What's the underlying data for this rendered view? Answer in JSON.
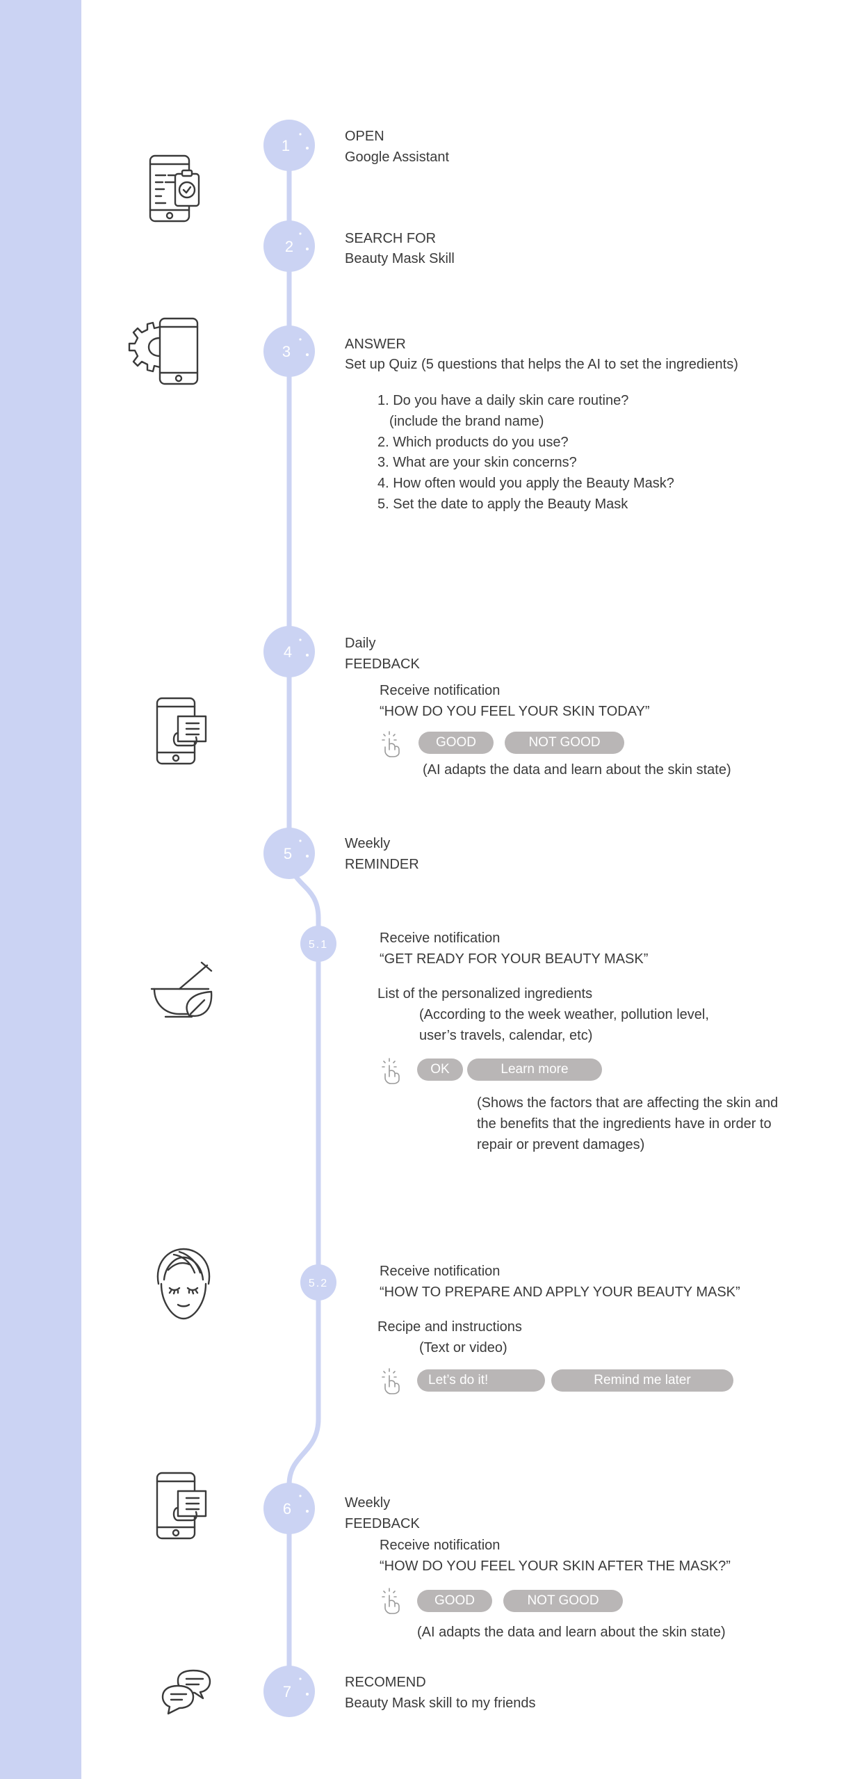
{
  "colors": {
    "sidebar": "#cbd3f3",
    "timeline": "#cbd3f3",
    "node": "#cbd3f3",
    "button": "#b9b6b6",
    "icon": "#3a3a3a"
  },
  "steps": [
    {
      "number": "1",
      "label": "OPEN",
      "detail": "Google Assistant",
      "icon": "phone-clipboard-icon"
    },
    {
      "number": "2",
      "label": "SEARCH FOR",
      "detail": "Beauty Mask Skill"
    },
    {
      "number": "3",
      "label": "ANSWER",
      "detail": "Set up Quiz (5 questions that helps the AI to set the ingredients)",
      "icon": "phone-gear-icon",
      "questions": [
        "1. Do you have a daily skin care routine?",
        "(include the brand name)",
        "2. Which products do you use?",
        "3. What are your skin concerns?",
        "4. How often would you apply the Beauty Mask?",
        "5. Set the date to apply the Beauty Mask"
      ]
    },
    {
      "number": "4",
      "label": "Daily",
      "detail": "FEEDBACK",
      "icon": "phone-document-icon",
      "notification": "Receive notification",
      "message": "“HOW DO YOU FEEL YOUR SKIN TODAY”",
      "buttons": [
        "GOOD",
        "NOT GOOD"
      ],
      "note": "(AI adapts the data and learn about the skin state)"
    },
    {
      "number": "5",
      "label": "Weekly",
      "detail": "REMINDER"
    },
    {
      "number": "5.1",
      "icon": "mortar-leaf-icon",
      "notification": "Receive notification",
      "message": "“GET READY FOR YOUR BEAUTY MASK”",
      "list_title": "List of the personalized ingredients",
      "list_note": [
        "(According to the week weather, pollution level,",
        "user’s travels, calendar, etc)"
      ],
      "buttons": [
        "OK",
        "Learn more"
      ],
      "note": [
        "(Shows the factors that are affecting the skin and",
        "the benefits that the ingredients have in order to",
        "repair or prevent damages)"
      ]
    },
    {
      "number": "5.2",
      "icon": "face-turban-icon",
      "notification": "Receive notification",
      "message": "“HOW TO PREPARE AND APPLY YOUR BEAUTY MASK”",
      "recipe_title": "Recipe and instructions",
      "recipe_note": "(Text or video)",
      "buttons": [
        "Let’s do it!",
        "Remind me later"
      ]
    },
    {
      "number": "6",
      "label": "Weekly",
      "detail": "FEEDBACK",
      "icon": "phone-document-icon",
      "notification": "Receive notification",
      "message": "“HOW DO YOU FEEL YOUR SKIN AFTER THE MASK?”",
      "buttons": [
        "GOOD",
        "NOT GOOD"
      ],
      "note": "(AI adapts the data and learn about the skin state)"
    },
    {
      "number": "7",
      "label": "RECOMEND",
      "detail": "Beauty Mask skill to my friends",
      "icon": "chat-bubbles-icon"
    }
  ]
}
